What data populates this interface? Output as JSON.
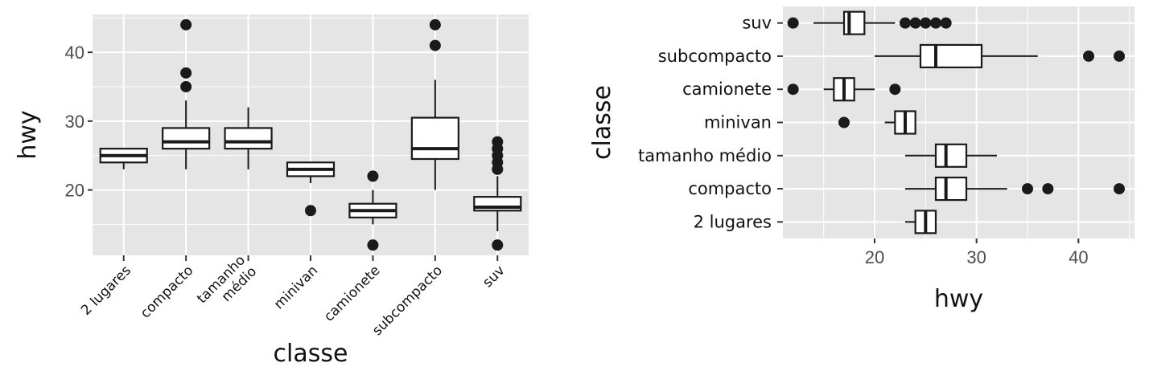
{
  "chart_data": [
    {
      "type": "boxplot",
      "orientation": "vertical",
      "xlabel": "classe",
      "ylabel": "hwy",
      "ylim": [
        10.5,
        45.5
      ],
      "yticks": [
        20,
        30,
        40
      ],
      "grid": true,
      "categories": [
        {
          "label": "2 lugares",
          "lines": [
            "2 lugares"
          ],
          "whisker_low": 23,
          "q1": 24,
          "median": 25,
          "q3": 26,
          "whisker_high": 26,
          "outliers": []
        },
        {
          "label": "compacto",
          "lines": [
            "compacto"
          ],
          "whisker_low": 23,
          "q1": 26,
          "median": 27,
          "q3": 29,
          "whisker_high": 33,
          "outliers": [
            35,
            37,
            44
          ]
        },
        {
          "label": "tamanho médio",
          "lines": [
            "tamanho",
            "médio"
          ],
          "whisker_low": 23,
          "q1": 26,
          "median": 27,
          "q3": 29,
          "whisker_high": 32,
          "outliers": []
        },
        {
          "label": "minivan",
          "lines": [
            "minivan"
          ],
          "whisker_low": 21,
          "q1": 22,
          "median": 23,
          "q3": 24,
          "whisker_high": 24,
          "outliers": [
            17
          ]
        },
        {
          "label": "camionete",
          "lines": [
            "camionete"
          ],
          "whisker_low": 15,
          "q1": 16,
          "median": 17,
          "q3": 18,
          "whisker_high": 20,
          "outliers": [
            12,
            22
          ]
        },
        {
          "label": "subcompacto",
          "lines": [
            "subcompacto"
          ],
          "whisker_low": 20,
          "q1": 24.5,
          "median": 26,
          "q3": 30.5,
          "whisker_high": 36,
          "outliers": [
            41,
            44
          ]
        },
        {
          "label": "suv",
          "lines": [
            "suv"
          ],
          "whisker_low": 14,
          "q1": 17,
          "median": 17.5,
          "q3": 19,
          "whisker_high": 22,
          "outliers": [
            12,
            23,
            24,
            25,
            26,
            27
          ]
        }
      ]
    },
    {
      "type": "boxplot",
      "orientation": "horizontal",
      "xlabel": "hwy",
      "ylabel": "classe",
      "xlim": [
        11,
        45.5
      ],
      "xticks": [
        20,
        30,
        40
      ],
      "grid": true,
      "categories": [
        {
          "label": "2 lugares",
          "whisker_low": 23,
          "q1": 24,
          "median": 25,
          "q3": 26,
          "whisker_high": 26,
          "outliers": []
        },
        {
          "label": "compacto",
          "whisker_low": 23,
          "q1": 26,
          "median": 27,
          "q3": 29,
          "whisker_high": 33,
          "outliers": [
            35,
            37,
            44
          ]
        },
        {
          "label": "tamanho médio",
          "whisker_low": 23,
          "q1": 26,
          "median": 27,
          "q3": 29,
          "whisker_high": 32,
          "outliers": []
        },
        {
          "label": "minivan",
          "whisker_low": 21,
          "q1": 22,
          "median": 23,
          "q3": 24,
          "whisker_high": 24,
          "outliers": [
            17
          ]
        },
        {
          "label": "camionete",
          "whisker_low": 15,
          "q1": 16,
          "median": 17,
          "q3": 18,
          "whisker_high": 20,
          "outliers": [
            12,
            22
          ]
        },
        {
          "label": "subcompacto",
          "whisker_low": 20,
          "q1": 24.5,
          "median": 26,
          "q3": 30.5,
          "whisker_high": 36,
          "outliers": [
            41,
            44
          ]
        },
        {
          "label": "suv",
          "whisker_low": 14,
          "q1": 17,
          "median": 17.5,
          "q3": 19,
          "whisker_high": 22,
          "outliers": [
            12,
            23,
            24,
            25,
            26,
            27
          ]
        }
      ]
    }
  ],
  "colors": {
    "panel_background": "#e5e5e5",
    "grid": "#ffffff",
    "box_fill": "#ffffff",
    "stroke": "#1a1a1a",
    "outlier": "#1a1a1a",
    "tick_text": "#4d4d4d",
    "label_text": "#111111"
  }
}
